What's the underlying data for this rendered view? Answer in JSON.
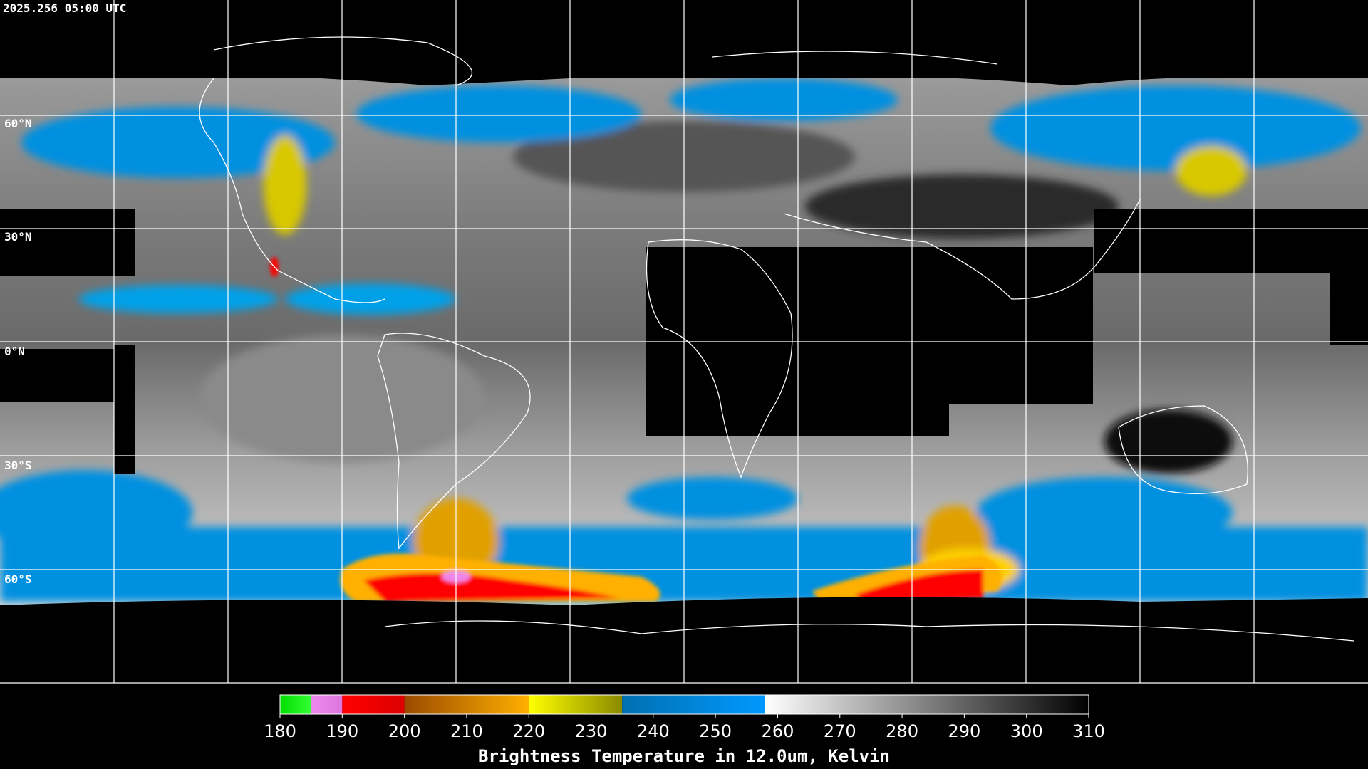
{
  "timestamp": "2025.256 05:00 UTC",
  "latitude_labels": [
    "60°N",
    "30°N",
    "0°N",
    "30°S",
    "60°S"
  ],
  "colorbar": {
    "title": "Brightness Temperature in 12.0um, Kelvin",
    "lim": [
      180,
      310
    ],
    "ticks": [
      180,
      190,
      200,
      210,
      220,
      230,
      240,
      250,
      260,
      270,
      280,
      290,
      300,
      310
    ],
    "segments": [
      {
        "from": 180,
        "to": 185,
        "colors": [
          "#00dd00",
          "#33ff33"
        ]
      },
      {
        "from": 185,
        "to": 190,
        "colors": [
          "#ee88ee",
          "#dd77dd"
        ]
      },
      {
        "from": 190,
        "to": 200,
        "colors": [
          "#ff0000",
          "#dd0000"
        ]
      },
      {
        "from": 200,
        "to": 220,
        "colors": [
          "#9a4a00",
          "#ffb000"
        ]
      },
      {
        "from": 220,
        "to": 235,
        "colors": [
          "#ffff00",
          "#8a8a00"
        ]
      },
      {
        "from": 235,
        "to": 258,
        "colors": [
          "#0070b0",
          "#0099ff"
        ]
      },
      {
        "from": 258,
        "to": 310,
        "colors": [
          "#ffffff",
          "#000000"
        ]
      }
    ]
  }
}
